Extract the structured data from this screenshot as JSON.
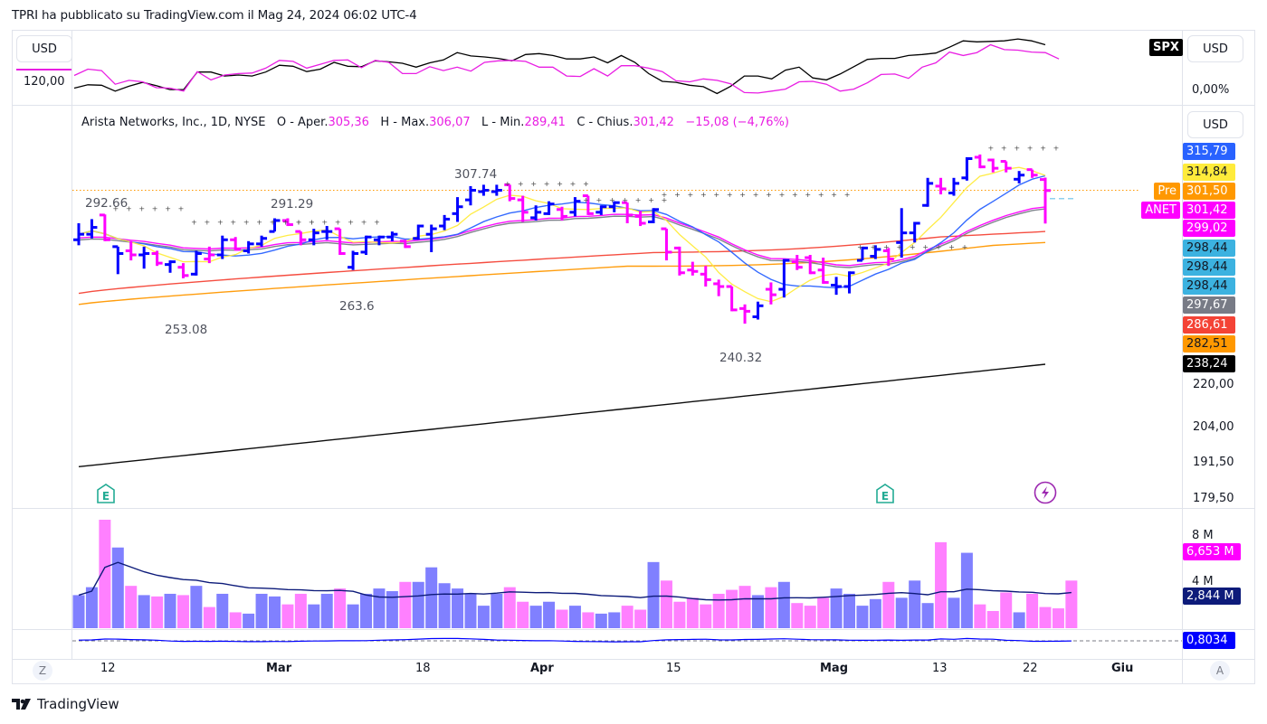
{
  "header": {
    "published": "TPRI ha pubblicato su TradingView.com il Mag 24, 2024 06:02 UTC-4"
  },
  "compare_pane": {
    "left_currency": "USD",
    "left_value": "120,00",
    "right_currency": "USD",
    "right_value": "0,00%",
    "symbol_tag": "SPX",
    "colors": {
      "spx": "#000000",
      "anet": "#e91ee3"
    }
  },
  "main_pane": {
    "currency": "USD",
    "legend": {
      "name": "Arista Networks, Inc., 1D, NYSE",
      "o_label": "O - Aper.",
      "o": "305,36",
      "h_label": "H - Max.",
      "h": "306,07",
      "l_label": "L - Min.",
      "l": "289,41",
      "c_label": "C - Chius.",
      "c": "301,42",
      "change": "−15,08 (−4,76%)"
    },
    "annotations": [
      "292.66",
      "291.29",
      "307.74",
      "253.08",
      "263.6",
      "240.32"
    ],
    "price_tags": [
      {
        "label": "",
        "value": "315,79",
        "bg": "#2962ff",
        "fg": "#ffffff"
      },
      {
        "label": "",
        "value": "314,84",
        "bg": "#ffeb3b",
        "fg": "#131722"
      },
      {
        "label": "Pre",
        "value": "301,50",
        "bg": "#ff9800",
        "fg": "#ffffff"
      },
      {
        "label": "ANET",
        "value": "301,42",
        "bg": "#ff00ff",
        "fg": "#ffffff"
      },
      {
        "label": "",
        "value": "299,02",
        "bg": "#ff00ff",
        "fg": "#ffffff"
      },
      {
        "label": "",
        "value": "298,44",
        "bg": "#3cb2e0",
        "fg": "#131722"
      },
      {
        "label": "",
        "value": "298,44",
        "bg": "#3cb2e0",
        "fg": "#131722"
      },
      {
        "label": "",
        "value": "298,44",
        "bg": "#3cb2e0",
        "fg": "#131722"
      },
      {
        "label": "",
        "value": "297,67",
        "bg": "#787b86",
        "fg": "#ffffff"
      },
      {
        "label": "",
        "value": "286,61",
        "bg": "#f44336",
        "fg": "#ffffff"
      },
      {
        "label": "",
        "value": "282,51",
        "bg": "#ff9800",
        "fg": "#131722"
      },
      {
        "label": "",
        "value": "238,24",
        "bg": "#000000",
        "fg": "#ffffff"
      }
    ],
    "axis_ticks": [
      "220,00",
      "204,00",
      "191,50",
      "179,50"
    ],
    "events": [
      {
        "type": "earnings",
        "glyph": "E"
      },
      {
        "type": "earnings",
        "glyph": "E"
      },
      {
        "type": "dividend-split",
        "glyph": "⚡"
      }
    ]
  },
  "volume_pane": {
    "axis_ticks": [
      "8 M",
      "4 M"
    ],
    "tags": [
      {
        "value": "6,653 M",
        "bg": "#ff00ff",
        "fg": "#ffffff"
      },
      {
        "value": "2,844 M",
        "bg": "#0d1b7a",
        "fg": "#ffffff"
      }
    ]
  },
  "osc_pane": {
    "tag": {
      "value": "0,8034",
      "bg": "#0000ff",
      "fg": "#ffffff"
    }
  },
  "time_axis": {
    "labels": [
      {
        "text": "12",
        "bold": false
      },
      {
        "text": "Mar",
        "bold": true
      },
      {
        "text": "18",
        "bold": false
      },
      {
        "text": "Apr",
        "bold": true
      },
      {
        "text": "15",
        "bold": false
      },
      {
        "text": "Mag",
        "bold": true
      },
      {
        "text": "13",
        "bold": false
      },
      {
        "text": "22",
        "bold": false
      },
      {
        "text": "Giu",
        "bold": true
      }
    ],
    "left_button": "Z",
    "right_button": "A"
  },
  "footer": {
    "brand": "TradingView"
  },
  "chart_data": {
    "type": "ohlc",
    "title": "Arista Networks, Inc. (ANET), 1D, NYSE",
    "up_color": "#0000ff",
    "down_color": "#ff00ff",
    "y_range": [
      179.5,
      320
    ],
    "bars": [
      {
        "o": 283.5,
        "h": 289.5,
        "l": 281.5,
        "c": 285.5,
        "up": true
      },
      {
        "o": 285.5,
        "h": 291.0,
        "l": 284.0,
        "c": 288.0,
        "up": true
      },
      {
        "o": 292.5,
        "h": 292.7,
        "l": 283.0,
        "c": 283.5,
        "up": false
      },
      {
        "o": 281.0,
        "h": 281.0,
        "l": 271.0,
        "c": 278.5,
        "up": true
      },
      {
        "o": 279.5,
        "h": 283.0,
        "l": 276.0,
        "c": 278.0,
        "up": false
      },
      {
        "o": 278.0,
        "h": 281.0,
        "l": 273.0,
        "c": 278.5,
        "up": true
      },
      {
        "o": 278.5,
        "h": 279.5,
        "l": 274.0,
        "c": 275.0,
        "up": false
      },
      {
        "o": 274.5,
        "h": 276.0,
        "l": 271.5,
        "c": 275.5,
        "up": true
      },
      {
        "o": 273.5,
        "h": 275.0,
        "l": 269.5,
        "c": 270.5,
        "up": false
      },
      {
        "o": 271.0,
        "h": 279.5,
        "l": 270.5,
        "c": 278.5,
        "up": true
      },
      {
        "o": 276.5,
        "h": 281.0,
        "l": 275.0,
        "c": 278.0,
        "up": false
      },
      {
        "o": 278.0,
        "h": 285.0,
        "l": 276.5,
        "c": 283.5,
        "up": true
      },
      {
        "o": 283.5,
        "h": 284.5,
        "l": 279.5,
        "c": 280.0,
        "up": false
      },
      {
        "o": 279.5,
        "h": 283.0,
        "l": 278.5,
        "c": 282.0,
        "up": true
      },
      {
        "o": 282.0,
        "h": 285.0,
        "l": 281.0,
        "c": 284.0,
        "up": true
      },
      {
        "o": 286.5,
        "h": 291.3,
        "l": 286.5,
        "c": 290.5,
        "up": true
      },
      {
        "o": 290.5,
        "h": 291.3,
        "l": 288.5,
        "c": 289.0,
        "up": false
      },
      {
        "o": 286.5,
        "h": 286.5,
        "l": 281.5,
        "c": 283.5,
        "up": false
      },
      {
        "o": 283.5,
        "h": 287.5,
        "l": 281.5,
        "c": 286.0,
        "up": true
      },
      {
        "o": 286.5,
        "h": 288.5,
        "l": 283.5,
        "c": 286.5,
        "up": true
      },
      {
        "o": 287.5,
        "h": 287.5,
        "l": 278.0,
        "c": 278.5,
        "up": false
      },
      {
        "o": 273.5,
        "h": 279.5,
        "l": 272.5,
        "c": 278.5,
        "up": true
      },
      {
        "o": 279.0,
        "h": 285.0,
        "l": 278.0,
        "c": 284.5,
        "up": true
      },
      {
        "o": 283.5,
        "h": 285.0,
        "l": 281.5,
        "c": 284.5,
        "up": true
      },
      {
        "o": 284.5,
        "h": 286.5,
        "l": 283.0,
        "c": 285.5,
        "up": true
      },
      {
        "o": 283.0,
        "h": 283.5,
        "l": 280.5,
        "c": 281.0,
        "up": false
      },
      {
        "o": 284.0,
        "h": 289.0,
        "l": 283.5,
        "c": 288.5,
        "up": true
      },
      {
        "o": 285.5,
        "h": 289.0,
        "l": 279.0,
        "c": 287.5,
        "up": true
      },
      {
        "o": 288.5,
        "h": 292.5,
        "l": 287.0,
        "c": 291.0,
        "up": true
      },
      {
        "o": 293.0,
        "h": 299.0,
        "l": 290.0,
        "c": 295.5,
        "up": true
      },
      {
        "o": 298.0,
        "h": 303.0,
        "l": 296.0,
        "c": 301.5,
        "up": true
      },
      {
        "o": 301.0,
        "h": 303.5,
        "l": 299.5,
        "c": 301.5,
        "up": true
      },
      {
        "o": 301.0,
        "h": 303.5,
        "l": 299.5,
        "c": 301.5,
        "up": true
      },
      {
        "o": 303.5,
        "h": 303.5,
        "l": 297.5,
        "c": 298.5,
        "up": false
      },
      {
        "o": 298.0,
        "h": 299.5,
        "l": 290.0,
        "c": 293.5,
        "up": false
      },
      {
        "o": 291.5,
        "h": 296.0,
        "l": 290.5,
        "c": 293.5,
        "up": true
      },
      {
        "o": 293.0,
        "h": 297.5,
        "l": 292.5,
        "c": 296.5,
        "up": true
      },
      {
        "o": 294.5,
        "h": 295.5,
        "l": 290.5,
        "c": 292.0,
        "up": false
      },
      {
        "o": 293.5,
        "h": 299.0,
        "l": 292.0,
        "c": 297.5,
        "up": true
      },
      {
        "o": 299.5,
        "h": 299.5,
        "l": 292.5,
        "c": 293.0,
        "up": false
      },
      {
        "o": 293.5,
        "h": 296.0,
        "l": 292.5,
        "c": 295.5,
        "up": true
      },
      {
        "o": 295.5,
        "h": 297.5,
        "l": 293.5,
        "c": 297.0,
        "up": true
      },
      {
        "o": 297.0,
        "h": 297.0,
        "l": 289.5,
        "c": 292.5,
        "up": false
      },
      {
        "o": 292.0,
        "h": 294.0,
        "l": 288.5,
        "c": 289.5,
        "up": false
      },
      {
        "o": 290.0,
        "h": 295.0,
        "l": 289.5,
        "c": 294.5,
        "up": true
      },
      {
        "o": 287.5,
        "h": 287.5,
        "l": 276.0,
        "c": 279.0,
        "up": false
      },
      {
        "o": 280.5,
        "h": 281.0,
        "l": 270.5,
        "c": 271.5,
        "up": false
      },
      {
        "o": 272.5,
        "h": 275.5,
        "l": 270.5,
        "c": 272.0,
        "up": false
      },
      {
        "o": 271.0,
        "h": 274.0,
        "l": 266.5,
        "c": 269.0,
        "up": false
      },
      {
        "o": 267.5,
        "h": 269.0,
        "l": 263.0,
        "c": 266.5,
        "up": false
      },
      {
        "o": 266.5,
        "h": 266.5,
        "l": 257.5,
        "c": 258.0,
        "up": false
      },
      {
        "o": 258.5,
        "h": 260.0,
        "l": 253.0,
        "c": 257.5,
        "up": false
      },
      {
        "o": 255.5,
        "h": 261.0,
        "l": 254.5,
        "c": 259.5,
        "up": true
      },
      {
        "o": 265.5,
        "h": 268.0,
        "l": 260.0,
        "c": 263.5,
        "up": false
      },
      {
        "o": 265.5,
        "h": 276.5,
        "l": 262.5,
        "c": 276.0,
        "up": true
      },
      {
        "o": 275.5,
        "h": 278.0,
        "l": 272.5,
        "c": 273.5,
        "up": false
      },
      {
        "o": 277.0,
        "h": 278.0,
        "l": 271.0,
        "c": 271.5,
        "up": false
      },
      {
        "o": 272.5,
        "h": 277.0,
        "l": 267.5,
        "c": 268.0,
        "up": false
      },
      {
        "o": 267.0,
        "h": 270.0,
        "l": 263.5,
        "c": 266.5,
        "up": true
      },
      {
        "o": 266.5,
        "h": 272.0,
        "l": 264.0,
        "c": 271.5,
        "up": true
      },
      {
        "o": 276.0,
        "h": 281.0,
        "l": 276.0,
        "c": 280.5,
        "up": true
      },
      {
        "o": 277.5,
        "h": 281.5,
        "l": 276.5,
        "c": 280.0,
        "up": true
      },
      {
        "o": 279.5,
        "h": 280.5,
        "l": 274.0,
        "c": 276.5,
        "up": false
      },
      {
        "o": 282.5,
        "h": 295.0,
        "l": 277.0,
        "c": 286.0,
        "up": true
      },
      {
        "o": 286.0,
        "h": 290.0,
        "l": 282.5,
        "c": 289.5,
        "up": true
      },
      {
        "o": 296.0,
        "h": 306.0,
        "l": 295.5,
        "c": 304.0,
        "up": true
      },
      {
        "o": 303.0,
        "h": 306.0,
        "l": 300.0,
        "c": 302.0,
        "up": false
      },
      {
        "o": 300.5,
        "h": 306.0,
        "l": 299.5,
        "c": 304.0,
        "up": true
      },
      {
        "o": 306.0,
        "h": 313.5,
        "l": 305.0,
        "c": 313.0,
        "up": true
      },
      {
        "o": 313.5,
        "h": 314.5,
        "l": 309.5,
        "c": 310.0,
        "up": false
      },
      {
        "o": 312.5,
        "h": 313.0,
        "l": 308.0,
        "c": 309.5,
        "up": false
      },
      {
        "o": 312.0,
        "h": 312.0,
        "l": 308.0,
        "c": 309.5,
        "up": false
      },
      {
        "o": 305.5,
        "h": 308.5,
        "l": 304.0,
        "c": 307.0,
        "up": true
      },
      {
        "o": 309.0,
        "h": 309.0,
        "l": 306.0,
        "c": 307.0,
        "up": false
      },
      {
        "o": 305.4,
        "h": 306.1,
        "l": 289.4,
        "c": 301.4,
        "up": false
      }
    ],
    "moving_averages": [
      {
        "name": "MA fast (yellow)",
        "color": "#ffeb3b",
        "last": 314.84
      },
      {
        "name": "MA (blue)",
        "color": "#2962ff",
        "last": 315.79
      },
      {
        "name": "MA (magenta)",
        "color": "#ff00ff",
        "last": 299.02
      },
      {
        "name": "MA (gray)",
        "color": "#787b86",
        "last": 297.67
      },
      {
        "name": "MA (red)",
        "color": "#f44336",
        "last": 286.61
      },
      {
        "name": "MA (orange)",
        "color": "#ff9800",
        "last": 282.51
      },
      {
        "name": "MA 200 (black)",
        "color": "#000000",
        "last": 238.24
      }
    ],
    "volume": {
      "unit": "M",
      "y_range": [
        0,
        9.5
      ],
      "values": [
        2.5,
        3.1,
        8.2,
        6.1,
        3.2,
        2.5,
        2.4,
        2.6,
        2.5,
        3.2,
        1.6,
        2.6,
        1.2,
        1.1,
        2.6,
        2.4,
        1.8,
        2.6,
        1.8,
        2.6,
        3.0,
        1.8,
        2.6,
        3.0,
        2.8,
        3.5,
        3.5,
        4.6,
        3.4,
        3.0,
        2.6,
        1.7,
        2.6,
        3.1,
        2.0,
        1.7,
        2.0,
        1.4,
        1.7,
        1.2,
        1.1,
        1.2,
        1.7,
        1.4,
        5.0,
        3.6,
        2.0,
        2.3,
        1.8,
        2.6,
        2.9,
        3.2,
        2.5,
        3.1,
        3.5,
        1.9,
        1.7,
        2.3,
        3.0,
        2.6,
        1.7,
        2.2,
        3.5,
        2.3,
        3.6,
        1.9,
        6.5,
        2.3,
        5.7,
        1.8,
        1.3,
        2.7,
        1.2,
        2.6,
        1.6,
        1.5,
        3.6
      ],
      "ma_last": 2.844,
      "last": 6.653
    },
    "oscillator_last": 0.8034,
    "compare_lines": {
      "spx": [
        0.0,
        0.7,
        0.6,
        -0.6,
        0.4,
        1.2,
        0.5,
        -0.3,
        -0.3,
        3.3,
        3.3,
        2.5,
        2.7,
        2.5,
        3.3,
        4.7,
        4.5,
        3.4,
        3.9,
        5.3,
        4.5,
        4.4,
        5.6,
        5.4,
        5.1,
        4.3,
        5.2,
        5.8,
        7.3,
        6.6,
        6.4,
        6.1,
        5.6,
        6.9,
        7.1,
        6.7,
        6.0,
        6.0,
        6.4,
        5.2,
        6.7,
        5.3,
        3.0,
        1.4,
        1.2,
        0.6,
        0.3,
        -1.1,
        0.4,
        2.5,
        2.5,
        1.9,
        3.7,
        4.3,
        2.1,
        1.7,
        2.9,
        4.4,
        5.9,
        6.1,
        6.1,
        6.7,
        6.9,
        7.2,
        8.4,
        9.7,
        9.5,
        9.6,
        9.7,
        10.1,
        9.7,
        8.9
      ],
      "anet": [
        2.6,
        3.9,
        3.6,
        0.8,
        1.6,
        1.3,
        0.1,
        0.0,
        -0.6,
        3.4,
        1.7,
        2.7,
        3.0,
        3.1,
        4.1,
        5.7,
        5.5,
        4.1,
        4.9,
        5.7,
        5.8,
        4.2,
        5.7,
        5.3,
        3.0,
        3.0,
        4.4,
        3.6,
        4.3,
        3.5,
        5.3,
        5.6,
        5.7,
        5.5,
        4.3,
        4.3,
        2.5,
        2.4,
        4.0,
        2.5,
        4.6,
        4.6,
        4.1,
        3.4,
        1.5,
        1.3,
        1.9,
        1.6,
        0.9,
        -0.9,
        -1.0,
        -0.6,
        -0.2,
        1.3,
        1.4,
        0.8,
        -0.6,
        -0.2,
        1.1,
        2.8,
        2.9,
        2.0,
        4.3,
        5.2,
        7.4,
        6.7,
        7.3,
        8.9,
        7.9,
        7.8,
        7.4,
        7.3,
        6.0
      ]
    }
  }
}
